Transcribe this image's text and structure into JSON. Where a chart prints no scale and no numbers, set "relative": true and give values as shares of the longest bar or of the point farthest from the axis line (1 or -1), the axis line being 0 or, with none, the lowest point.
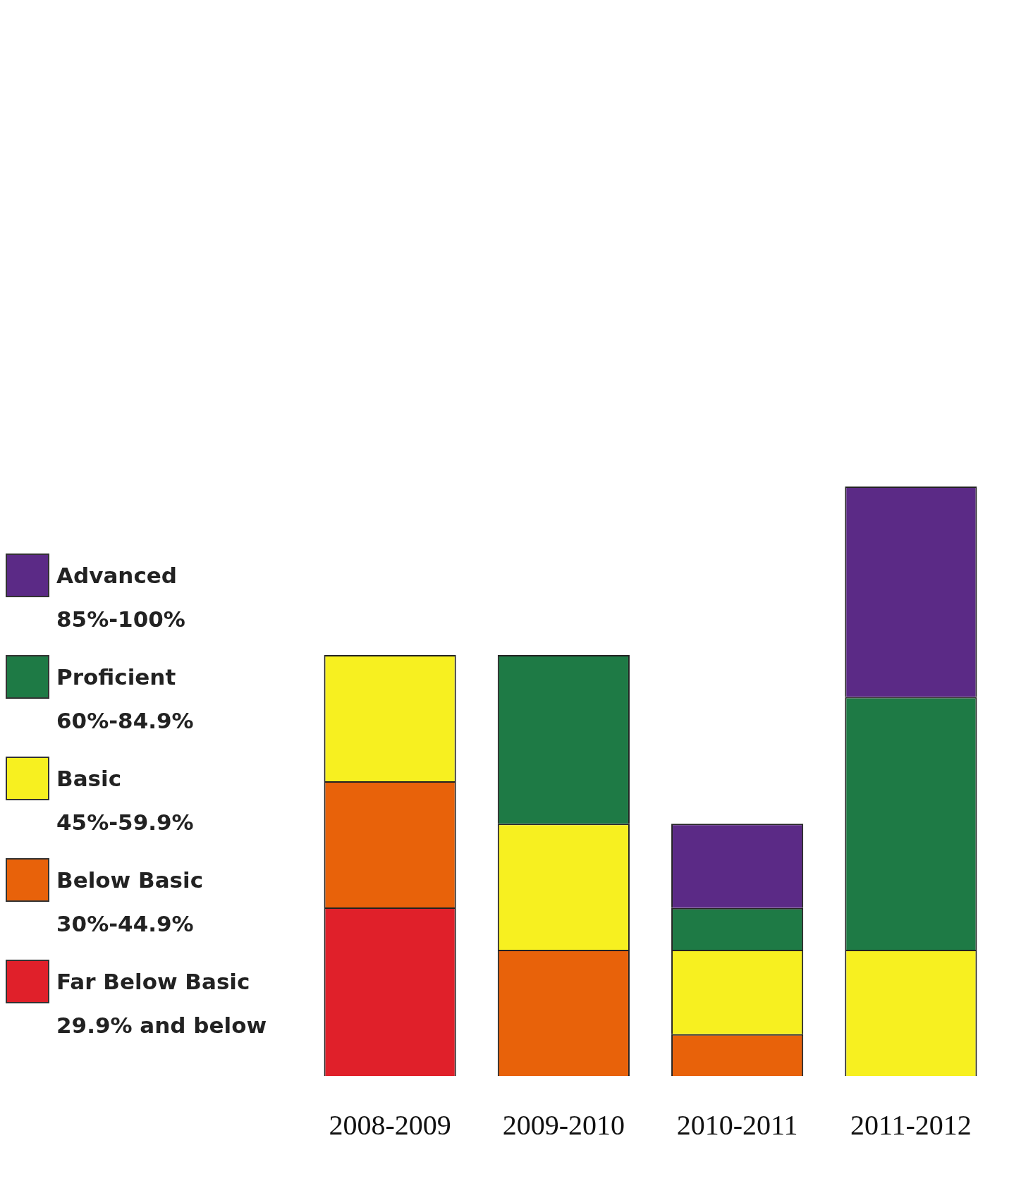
{
  "chart_data": {
    "type": "bar",
    "stacked": true,
    "relative": true,
    "legend": "left",
    "categories": [
      "2008-2009",
      "2009-2010",
      "2010-2011",
      "2011-2012"
    ],
    "series": [
      {
        "name": "Far Below Basic\n29.9% and below",
        "color": "#e0202a",
        "values": [
          0.286,
          null,
          null,
          null
        ]
      },
      {
        "name": "Below Basic\n30%-44.9%",
        "color": "#e8620a",
        "values": [
          0.214,
          0.214,
          0.071,
          null
        ]
      },
      {
        "name": "Basic\n45%-59.9%",
        "color": "#f7f020",
        "values": [
          0.214,
          0.214,
          0.143,
          0.214
        ]
      },
      {
        "name": "Proficient\n60%-84.9%",
        "color": "#1e7a45",
        "values": [
          null,
          0.286,
          0.071,
          0.429
        ]
      },
      {
        "name": "Advanced\n85%-100%",
        "color": "#5b2a86",
        "values": [
          null,
          null,
          0.143,
          0.357
        ]
      }
    ]
  }
}
